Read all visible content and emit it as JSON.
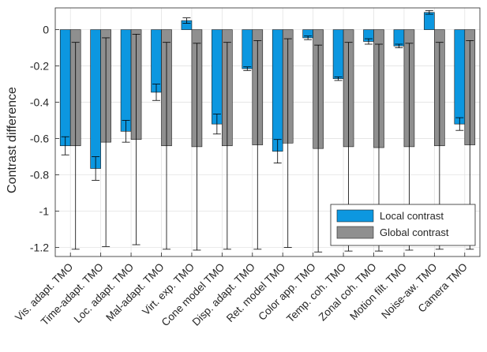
{
  "chart_data": {
    "type": "bar",
    "ylabel": "Contrast difference",
    "ylim": [
      -1.25,
      0.12
    ],
    "yticks": [
      0,
      -0.2,
      -0.4,
      -0.6,
      -0.8,
      -1,
      -1.2
    ],
    "ytick_labels": [
      "0",
      "-0.2",
      "-0.4",
      "-0.6",
      "-0.8",
      "-1",
      "-1.2"
    ],
    "grid": true,
    "legend_placement": "bottom-right",
    "categories": [
      "Vis. adapt. TMO",
      "Time-adapt. TMO",
      "Loc. adapt. TMO",
      "Mal-adapt. TMO",
      "Virt. exp. TMO",
      "Cone model TMO",
      "Disp. adapt. TMO",
      "Ret. model TMO",
      "Color app. TMO",
      "Temp. coh. TMO",
      "Zonal coh. TMO",
      "Motion filt. TMO",
      "Noise-aw. TMO",
      "Camera TMO"
    ],
    "series": [
      {
        "name": "Local contrast",
        "color": "#0c97e0",
        "values": [
          -0.64,
          -0.765,
          -0.56,
          -0.345,
          0.05,
          -0.52,
          -0.215,
          -0.67,
          -0.045,
          -0.27,
          -0.065,
          -0.09,
          0.095,
          -0.52
        ],
        "error": [
          0.05,
          0.065,
          0.06,
          0.045,
          0.015,
          0.055,
          0.01,
          0.065,
          0.01,
          0.01,
          0.015,
          0.01,
          0.01,
          0.035
        ]
      },
      {
        "name": "Global contrast",
        "color": "#8f8f8f",
        "values": [
          -0.64,
          -0.62,
          -0.605,
          -0.64,
          -0.645,
          -0.64,
          -0.635,
          -0.625,
          -0.655,
          -0.645,
          -0.65,
          -0.645,
          -0.64,
          -0.635
        ],
        "error": [
          0.57,
          0.575,
          0.58,
          0.57,
          0.57,
          0.57,
          0.575,
          0.575,
          0.57,
          0.575,
          0.57,
          0.57,
          0.57,
          0.575
        ]
      }
    ]
  }
}
